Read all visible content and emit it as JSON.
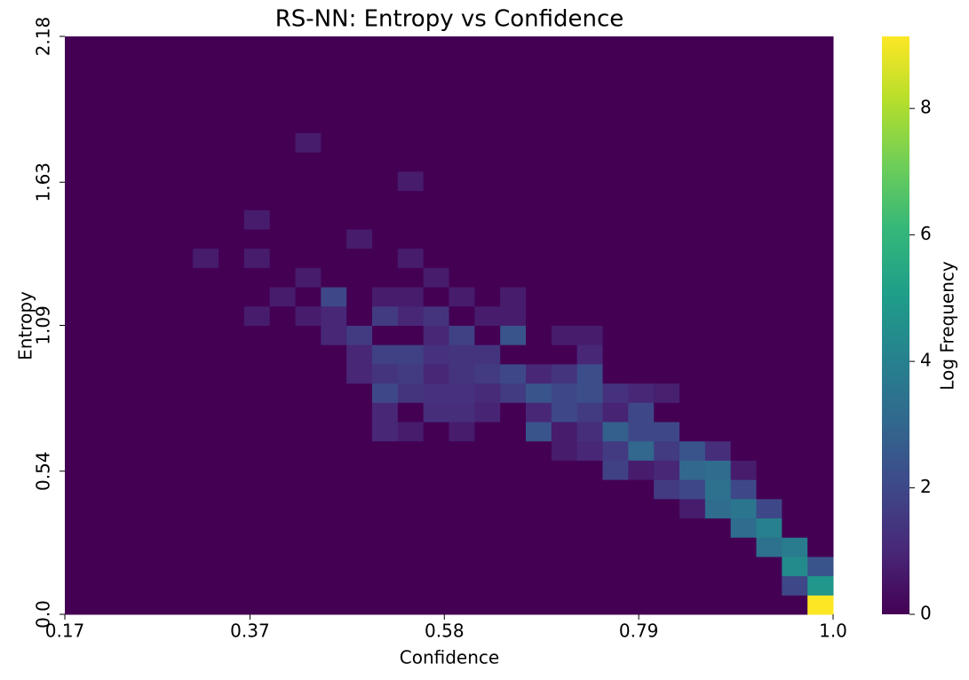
{
  "chart_data": {
    "type": "heatmap",
    "title": "RS-NN: Entropy vs Confidence",
    "x_label": "Confidence",
    "y_label": "Entropy",
    "colorbar_label": "Log Frequency",
    "xlim": [
      0.17,
      1.0
    ],
    "ylim": [
      0,
      2.18
    ],
    "clim": [
      0,
      9.14
    ],
    "xticks": [
      0.17,
      0.37,
      0.58,
      0.79,
      {
        "value": 1,
        "label": "1.0"
      }
    ],
    "yticks": [
      {
        "value": 0,
        "label": "0.0"
      },
      0.54,
      1.09,
      1.63,
      2.18
    ],
    "cticks": [
      0,
      2,
      4,
      6,
      8
    ],
    "colorscale": [
      "#440154",
      "#482878",
      "#3e4989",
      "#31688e",
      "#26828e",
      "#1f9e89",
      "#35b779",
      "#6ece58",
      "#b5de2b",
      "#fde725"
    ],
    "values": [
      [
        0,
        0,
        0,
        0,
        0,
        0,
        0,
        0,
        0,
        0,
        0,
        0,
        0,
        0,
        0,
        0,
        0,
        0,
        0,
        0,
        0,
        0,
        0,
        0,
        0,
        0,
        0,
        0,
        0,
        9.14
      ],
      [
        0,
        0,
        0,
        0,
        0,
        0,
        0,
        0,
        0,
        0,
        0,
        0,
        0,
        0,
        0,
        0,
        0,
        0,
        0,
        0,
        0,
        0,
        0,
        0,
        0,
        0,
        0,
        0,
        2,
        4.8
      ],
      [
        0,
        0,
        0,
        0,
        0,
        0,
        0,
        0,
        0,
        0,
        0,
        0,
        0,
        0,
        0,
        0,
        0,
        0,
        0,
        0,
        0,
        0,
        0,
        0,
        0,
        0,
        0,
        0,
        4.4,
        2.4
      ],
      [
        0,
        0,
        0,
        0,
        0,
        0,
        0,
        0,
        0,
        0,
        0,
        0,
        0,
        0,
        0,
        0,
        0,
        0,
        0,
        0,
        0,
        0,
        0,
        0,
        0,
        0,
        0,
        3.4,
        3.8,
        0
      ],
      [
        0,
        0,
        0,
        0,
        0,
        0,
        0,
        0,
        0,
        0,
        0,
        0,
        0,
        0,
        0,
        0,
        0,
        0,
        0,
        0,
        0,
        0,
        0,
        0,
        0,
        0,
        3.2,
        4,
        0,
        0
      ],
      [
        0,
        0,
        0,
        0,
        0,
        0,
        0,
        0,
        0,
        0,
        0,
        0,
        0,
        0,
        0,
        0,
        0,
        0,
        0,
        0,
        0,
        0,
        0,
        0,
        0.7,
        3.2,
        3.6,
        2,
        0,
        0
      ],
      [
        0,
        0,
        0,
        0,
        0,
        0,
        0,
        0,
        0,
        0,
        0,
        0,
        0,
        0,
        0,
        0,
        0,
        0,
        0,
        0,
        0,
        0,
        0,
        1.6,
        2,
        3.4,
        2,
        0,
        0,
        0
      ],
      [
        0,
        0,
        0,
        0,
        0,
        0,
        0,
        0,
        0,
        0,
        0,
        0,
        0,
        0,
        0,
        0,
        0,
        0,
        0,
        0,
        0,
        1.8,
        0.7,
        1,
        3,
        3.2,
        0.7,
        0,
        0,
        0
      ],
      [
        0,
        0,
        0,
        0,
        0,
        0,
        0,
        0,
        0,
        0,
        0,
        0,
        0,
        0,
        0,
        0,
        0,
        0,
        0,
        0.7,
        1,
        1.6,
        3,
        1.6,
        2.4,
        1.2,
        0,
        0,
        0,
        0
      ],
      [
        0,
        0,
        0,
        0,
        0,
        0,
        0,
        0,
        0,
        0,
        0,
        0,
        1,
        0.7,
        0,
        0.7,
        0,
        0,
        2.4,
        0.7,
        1.2,
        2.8,
        2,
        2,
        0,
        0,
        0,
        0,
        0,
        0
      ],
      [
        0,
        0,
        0,
        0,
        0,
        0,
        0,
        0,
        0,
        0,
        0,
        0,
        1,
        0,
        1.2,
        1.2,
        0.9,
        0,
        1,
        2,
        1.6,
        0.9,
        2,
        0,
        0,
        0,
        0,
        0,
        0,
        0
      ],
      [
        0,
        0,
        0,
        0,
        0,
        0,
        0,
        0,
        0,
        0,
        0,
        0,
        2,
        1.4,
        1.3,
        1.3,
        1.1,
        1.6,
        2.4,
        2,
        2.2,
        1.3,
        1,
        0.8,
        0,
        0,
        0,
        0,
        0,
        0
      ],
      [
        0,
        0,
        0,
        0,
        0,
        0,
        0,
        0,
        0,
        0,
        0,
        1,
        1.4,
        1.6,
        1,
        1.4,
        1.6,
        2,
        1,
        1.4,
        2.2,
        0,
        0,
        0,
        0,
        0,
        0,
        0,
        0,
        0
      ],
      [
        0,
        0,
        0,
        0,
        0,
        0,
        0,
        0,
        0,
        0,
        0,
        1,
        1.8,
        1.8,
        1.3,
        1.4,
        1.4,
        0,
        0,
        0,
        1,
        0,
        0,
        0,
        0,
        0,
        0,
        0,
        0,
        0
      ],
      [
        0,
        0,
        0,
        0,
        0,
        0,
        0,
        0,
        0,
        0,
        1,
        1.6,
        0,
        0,
        1,
        1.8,
        0,
        2.4,
        0,
        0.7,
        0.7,
        0,
        0,
        0,
        0,
        0,
        0,
        0,
        0,
        0
      ],
      [
        0,
        0,
        0,
        0,
        0,
        0,
        0,
        0.7,
        0,
        0.7,
        1,
        0,
        1.6,
        1,
        1.4,
        0,
        0.7,
        0.7,
        0,
        0,
        0,
        0,
        0,
        0,
        0,
        0,
        0,
        0,
        0,
        0
      ],
      [
        0,
        0,
        0,
        0,
        0,
        0,
        0,
        0,
        0.7,
        0,
        2,
        0,
        0.7,
        0.7,
        0,
        0.7,
        0,
        0.7,
        0,
        0,
        0,
        0,
        0,
        0,
        0,
        0,
        0,
        0,
        0,
        0
      ],
      [
        0,
        0,
        0,
        0,
        0,
        0,
        0,
        0,
        0,
        0.7,
        0,
        0,
        0,
        0,
        0.7,
        0,
        0,
        0,
        0,
        0,
        0,
        0,
        0,
        0,
        0,
        0,
        0,
        0,
        0,
        0
      ],
      [
        0,
        0,
        0,
        0,
        0,
        0.7,
        0,
        0.7,
        0,
        0,
        0,
        0,
        0,
        0.7,
        0,
        0,
        0,
        0,
        0,
        0,
        0,
        0,
        0,
        0,
        0,
        0,
        0,
        0,
        0,
        0
      ],
      [
        0,
        0,
        0,
        0,
        0,
        0,
        0,
        0,
        0,
        0,
        0,
        0.7,
        0,
        0,
        0,
        0,
        0,
        0,
        0,
        0,
        0,
        0,
        0,
        0,
        0,
        0,
        0,
        0,
        0,
        0
      ],
      [
        0,
        0,
        0,
        0,
        0,
        0,
        0,
        0.7,
        0,
        0,
        0,
        0,
        0,
        0,
        0,
        0,
        0,
        0,
        0,
        0,
        0,
        0,
        0,
        0,
        0,
        0,
        0,
        0,
        0,
        0
      ],
      [
        0,
        0,
        0,
        0,
        0,
        0,
        0,
        0,
        0,
        0,
        0,
        0,
        0,
        0,
        0,
        0,
        0,
        0,
        0,
        0,
        0,
        0,
        0,
        0,
        0,
        0,
        0,
        0,
        0,
        0
      ],
      [
        0,
        0,
        0,
        0,
        0,
        0,
        0,
        0,
        0,
        0,
        0,
        0,
        0,
        0.7,
        0,
        0,
        0,
        0,
        0,
        0,
        0,
        0,
        0,
        0,
        0,
        0,
        0,
        0,
        0,
        0
      ],
      [
        0,
        0,
        0,
        0,
        0,
        0,
        0,
        0,
        0,
        0,
        0,
        0,
        0,
        0,
        0,
        0,
        0,
        0,
        0,
        0,
        0,
        0,
        0,
        0,
        0,
        0,
        0,
        0,
        0,
        0
      ],
      [
        0,
        0,
        0,
        0,
        0,
        0,
        0,
        0,
        0,
        0.7,
        0,
        0,
        0,
        0,
        0,
        0,
        0,
        0,
        0,
        0,
        0,
        0,
        0,
        0,
        0,
        0,
        0,
        0,
        0,
        0
      ],
      [
        0,
        0,
        0,
        0,
        0,
        0,
        0,
        0,
        0,
        0,
        0,
        0,
        0,
        0,
        0,
        0,
        0,
        0,
        0,
        0,
        0,
        0,
        0,
        0,
        0,
        0,
        0,
        0,
        0,
        0
      ],
      [
        0,
        0,
        0,
        0,
        0,
        0,
        0,
        0,
        0,
        0,
        0,
        0,
        0,
        0,
        0,
        0,
        0,
        0,
        0,
        0,
        0,
        0,
        0,
        0,
        0,
        0,
        0,
        0,
        0,
        0
      ],
      [
        0,
        0,
        0,
        0,
        0,
        0,
        0,
        0,
        0,
        0,
        0,
        0,
        0,
        0,
        0,
        0,
        0,
        0,
        0,
        0,
        0,
        0,
        0,
        0,
        0,
        0,
        0,
        0,
        0,
        0
      ],
      [
        0,
        0,
        0,
        0,
        0,
        0,
        0,
        0,
        0,
        0,
        0,
        0,
        0,
        0,
        0,
        0,
        0,
        0,
        0,
        0,
        0,
        0,
        0,
        0,
        0,
        0,
        0,
        0,
        0,
        0
      ],
      [
        0,
        0,
        0,
        0,
        0,
        0,
        0,
        0,
        0,
        0,
        0,
        0,
        0,
        0,
        0,
        0,
        0,
        0,
        0,
        0,
        0,
        0,
        0,
        0,
        0,
        0,
        0,
        0,
        0,
        0
      ]
    ]
  }
}
